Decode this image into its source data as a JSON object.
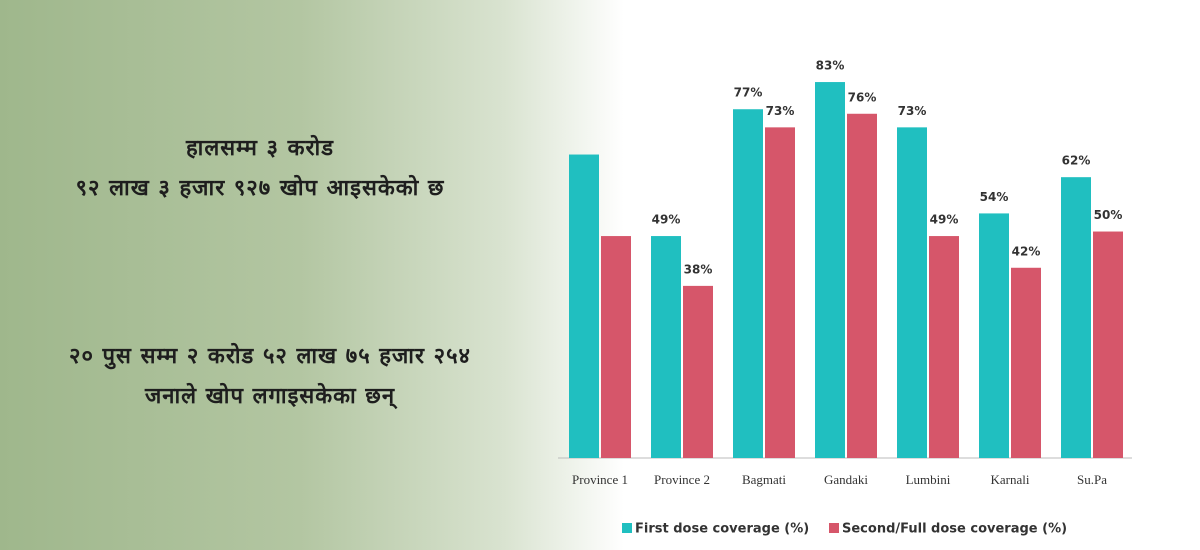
{
  "texts": {
    "block1": [
      "हालसम्म ३ करोड",
      "९२ लाख ३ हजार ९२७ खोप आइसकेको छ"
    ],
    "block2": [
      "२० पुस सम्म २ करोड ५२ लाख ७५ हजार २५४",
      "जनाले खोप लगाइसकेका छन्"
    ]
  },
  "chart_data": {
    "type": "bar",
    "categories": [
      "Province 1",
      "Province 2",
      "Bagmati",
      "Gandaki",
      "Lumbini",
      "Karnali",
      "Su.Pa"
    ],
    "series": [
      {
        "name": "First dose coverage (%)",
        "color": "#20bfc0",
        "values": [
          67,
          49,
          77,
          83,
          73,
          54,
          62
        ],
        "value_labels": [
          null,
          "49%",
          "77%",
          "83%",
          "73%",
          "54%",
          "62%"
        ]
      },
      {
        "name": "Second/Full dose coverage (%)",
        "color": "#d6566a",
        "values": [
          49,
          38,
          73,
          76,
          49,
          42,
          50
        ],
        "value_labels": [
          null,
          "38%",
          "73%",
          "76%",
          "49%",
          "42%",
          "50%"
        ]
      }
    ],
    "ylim": [
      0,
      85
    ]
  }
}
